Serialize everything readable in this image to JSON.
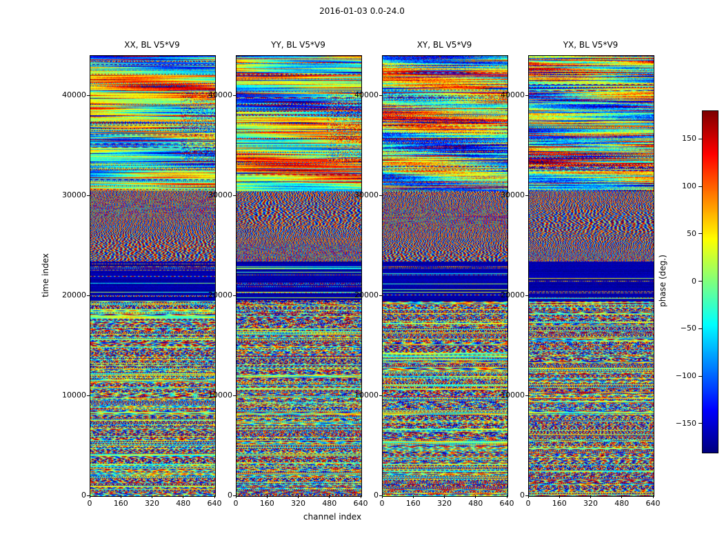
{
  "chart_data": {
    "type": "heatmap",
    "title": "2016-01-03 0.0-24.0",
    "xlabel": "channel index",
    "ylabel": "time index",
    "colormap": "jet",
    "panels": [
      {
        "title": "XX, BL V5*V9"
      },
      {
        "title": "YY, BL V5*V9"
      },
      {
        "title": "XY, BL V5*V9"
      },
      {
        "title": "YX, BL V5*V9"
      }
    ],
    "xlim": [
      0,
      640
    ],
    "x_ticks": [
      0,
      160,
      320,
      480,
      640
    ],
    "ylim": [
      0,
      44000
    ],
    "y_ticks": [
      0,
      10000,
      20000,
      30000,
      40000
    ],
    "colorbar": {
      "label": "phase (deg.)",
      "vmin": -180,
      "vmax": 180,
      "ticks": [
        150,
        100,
        50,
        0,
        -50,
        -100,
        -150
      ]
    },
    "regions": [
      {
        "time_range": [
          30500,
          44000
        ],
        "pattern": "smooth",
        "description": "large-scale smooth phase structure: green/cyan background with horizontal red and blue streaks, speckled patch at upper right"
      },
      {
        "time_range": [
          23500,
          30500
        ],
        "pattern": "fringes",
        "description": "diagonal interference fringes (moire pattern)"
      },
      {
        "time_range": [
          19500,
          23500
        ],
        "pattern": "dark",
        "description": "deep blue band with phase near -180 deg, sparse bright colored rows"
      },
      {
        "time_range": [
          0,
          19500
        ],
        "pattern": "noise",
        "description": "high-frequency striped phase noise with occasional smoother green bands and a warm orange band near time 9000-10000"
      }
    ]
  }
}
